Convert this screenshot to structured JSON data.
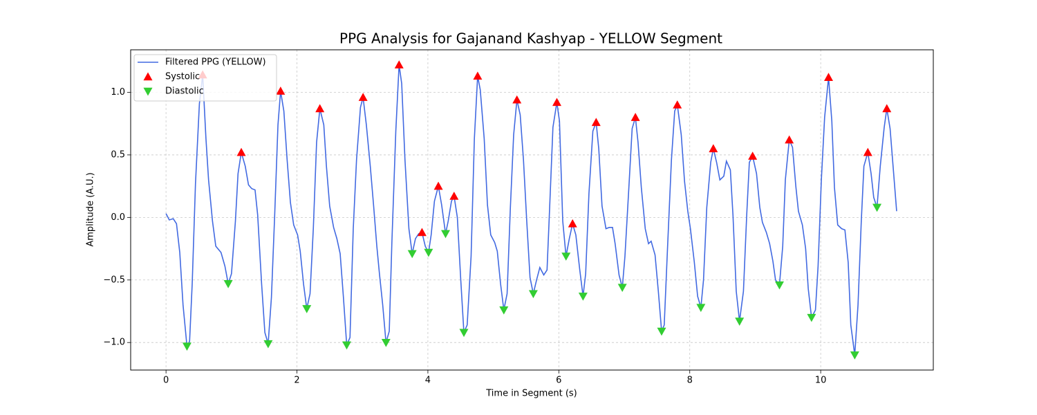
{
  "chart_data": {
    "type": "line",
    "title": "PPG Analysis for Gajanand Kashyap - YELLOW Segment",
    "x_label": "Time in Segment (s)",
    "y_label": "Amplitude (A.U.)",
    "xlim": [
      -0.54,
      11.72
    ],
    "ylim": [
      -1.22,
      1.34
    ],
    "xticks": [
      0,
      2,
      4,
      6,
      8,
      10
    ],
    "yticks": [
      {
        "value": -1,
        "label": "−1.0"
      },
      {
        "value": -0.5,
        "label": "−0.5"
      },
      {
        "value": 0,
        "label": "0.0"
      },
      0.5,
      {
        "value": 1,
        "label": "1.0"
      }
    ],
    "grid": true,
    "legend": "upper left",
    "series": [
      {
        "name": "Filtered PPG (YELLOW)",
        "color": "#4169e1",
        "mark": "line",
        "x": [
          0,
          0.05,
          0.11,
          0.16,
          0.21,
          0.26,
          0.32,
          0.36,
          0.4,
          0.45,
          0.51,
          0.56,
          0.61,
          0.65,
          0.71,
          0.76,
          0.84,
          0.9,
          0.95,
          1.0,
          1.06,
          1.1,
          1.15,
          1.21,
          1.26,
          1.31,
          1.36,
          1.4,
          1.46,
          1.51,
          1.56,
          1.61,
          1.66,
          1.71,
          1.75,
          1.8,
          1.85,
          1.9,
          1.95,
          2.01,
          2.05,
          2.1,
          2.15,
          2.2,
          2.25,
          2.3,
          2.35,
          2.41,
          2.45,
          2.5,
          2.56,
          2.61,
          2.66,
          2.71,
          2.76,
          2.81,
          2.86,
          2.91,
          2.97,
          3.01,
          3.06,
          3.12,
          3.17,
          3.22,
          3.26,
          3.31,
          3.36,
          3.41,
          3.45,
          3.51,
          3.56,
          3.6,
          3.65,
          3.71,
          3.76,
          3.81,
          3.86,
          3.91,
          3.96,
          4.01,
          4.05,
          4.1,
          4.16,
          4.21,
          4.27,
          4.31,
          4.36,
          4.4,
          4.45,
          4.5,
          4.55,
          4.6,
          4.66,
          4.71,
          4.76,
          4.8,
          4.86,
          4.91,
          4.96,
          5.02,
          5.06,
          5.11,
          5.16,
          5.21,
          5.26,
          5.31,
          5.36,
          5.41,
          5.46,
          5.51,
          5.56,
          5.61,
          5.66,
          5.71,
          5.77,
          5.82,
          5.86,
          5.91,
          5.97,
          6.01,
          6.06,
          6.11,
          6.16,
          6.21,
          6.26,
          6.32,
          6.37,
          6.41,
          6.46,
          6.52,
          6.57,
          6.61,
          6.66,
          6.72,
          6.77,
          6.82,
          6.86,
          6.92,
          6.97,
          7.01,
          7.07,
          7.12,
          7.17,
          7.21,
          7.26,
          7.32,
          7.37,
          7.41,
          7.47,
          7.52,
          7.57,
          7.61,
          7.66,
          7.72,
          7.77,
          7.81,
          7.87,
          7.92,
          7.97,
          8.01,
          8.07,
          8.12,
          8.17,
          8.21,
          8.26,
          8.32,
          8.36,
          8.41,
          8.46,
          8.52,
          8.56,
          8.62,
          8.66,
          8.71,
          8.76,
          8.82,
          8.87,
          8.91,
          8.96,
          9.02,
          9.07,
          9.11,
          9.17,
          9.22,
          9.27,
          9.31,
          9.37,
          9.42,
          9.46,
          9.52,
          9.57,
          9.62,
          9.66,
          9.72,
          9.77,
          9.81,
          9.86,
          9.92,
          9.96,
          10.01,
          10.06,
          10.12,
          10.17,
          10.21,
          10.26,
          10.32,
          10.37,
          10.42,
          10.46,
          10.52,
          10.57,
          10.62,
          10.66,
          10.72,
          10.77,
          10.81,
          10.86,
          10.91,
          10.97,
          11.01,
          11.06,
          11.11,
          11.16
        ],
        "values": [
          0.03,
          -0.02,
          -0.01,
          -0.05,
          -0.28,
          -0.7,
          -1.03,
          -0.99,
          -0.53,
          0.27,
          0.91,
          1.14,
          0.63,
          0.3,
          -0.03,
          -0.23,
          -0.28,
          -0.39,
          -0.53,
          -0.45,
          -0.03,
          0.35,
          0.52,
          0.41,
          0.26,
          0.23,
          0.22,
          0.02,
          -0.53,
          -0.92,
          -1.01,
          -0.64,
          0.02,
          0.74,
          1.01,
          0.85,
          0.46,
          0.12,
          -0.06,
          -0.14,
          -0.27,
          -0.53,
          -0.73,
          -0.61,
          -0.09,
          0.6,
          0.87,
          0.74,
          0.41,
          0.09,
          -0.08,
          -0.17,
          -0.29,
          -0.64,
          -1.02,
          -0.96,
          -0.09,
          0.46,
          0.88,
          0.96,
          0.74,
          0.41,
          0.1,
          -0.23,
          -0.45,
          -0.7,
          -1.0,
          -0.91,
          -0.2,
          0.69,
          1.22,
          1.07,
          0.46,
          -0.09,
          -0.29,
          -0.17,
          -0.13,
          -0.12,
          -0.23,
          -0.28,
          -0.14,
          0.13,
          0.25,
          0.1,
          -0.13,
          -0.03,
          0.13,
          0.17,
          0.0,
          -0.48,
          -0.92,
          -0.86,
          -0.31,
          0.63,
          1.13,
          1.02,
          0.63,
          0.1,
          -0.14,
          -0.2,
          -0.27,
          -0.53,
          -0.74,
          -0.61,
          0.08,
          0.66,
          0.94,
          0.82,
          0.46,
          -0.03,
          -0.48,
          -0.61,
          -0.5,
          -0.4,
          -0.46,
          -0.42,
          0.08,
          0.72,
          0.92,
          0.77,
          -0.03,
          -0.31,
          -0.17,
          -0.05,
          -0.14,
          -0.42,
          -0.63,
          -0.45,
          0.19,
          0.69,
          0.76,
          0.55,
          0.09,
          -0.09,
          -0.08,
          -0.08,
          -0.21,
          -0.46,
          -0.56,
          -0.31,
          0.24,
          0.71,
          0.8,
          0.6,
          0.24,
          -0.09,
          -0.21,
          -0.19,
          -0.3,
          -0.59,
          -0.91,
          -0.86,
          -0.25,
          0.46,
          0.85,
          0.9,
          0.66,
          0.29,
          0.05,
          -0.09,
          -0.36,
          -0.63,
          -0.72,
          -0.5,
          0.08,
          0.44,
          0.55,
          0.44,
          0.3,
          0.33,
          0.45,
          0.38,
          0.02,
          -0.59,
          -0.83,
          -0.59,
          0.02,
          0.44,
          0.49,
          0.35,
          0.08,
          -0.04,
          -0.12,
          -0.21,
          -0.35,
          -0.5,
          -0.54,
          -0.23,
          0.3,
          0.62,
          0.56,
          0.25,
          0.05,
          -0.06,
          -0.25,
          -0.57,
          -0.8,
          -0.74,
          -0.39,
          0.3,
          0.8,
          1.12,
          0.77,
          0.24,
          -0.06,
          -0.09,
          -0.1,
          -0.36,
          -0.86,
          -1.1,
          -0.7,
          -0.03,
          0.41,
          0.52,
          0.35,
          0.16,
          0.08,
          0.41,
          0.72,
          0.87,
          0.71,
          0.38,
          0.05
        ]
      },
      {
        "name": "Systolic",
        "color": "#ff0000",
        "mark": "triangle-up",
        "x": [
          0.56,
          1.15,
          1.75,
          2.35,
          3.01,
          3.56,
          3.91,
          4.16,
          4.4,
          4.76,
          5.36,
          5.97,
          6.21,
          6.57,
          7.17,
          7.81,
          8.36,
          8.96,
          9.52,
          10.12,
          10.72,
          11.01
        ],
        "values": [
          1.14,
          0.52,
          1.01,
          0.87,
          0.96,
          1.22,
          -0.12,
          0.25,
          0.17,
          1.13,
          0.94,
          0.92,
          -0.05,
          0.76,
          0.8,
          0.9,
          0.55,
          0.49,
          0.62,
          1.12,
          0.52,
          0.87
        ]
      },
      {
        "name": "Diastolic",
        "color": "#32cd32",
        "mark": "triangle-down",
        "x": [
          0.32,
          0.95,
          1.56,
          2.15,
          2.76,
          3.36,
          3.76,
          4.01,
          4.27,
          4.55,
          5.16,
          5.61,
          6.11,
          6.37,
          6.97,
          7.57,
          8.17,
          8.76,
          9.37,
          9.86,
          10.52,
          10.86
        ],
        "values": [
          -1.03,
          -0.53,
          -1.01,
          -0.73,
          -1.02,
          -1.0,
          -0.29,
          -0.28,
          -0.13,
          -0.92,
          -0.74,
          -0.61,
          -0.31,
          -0.63,
          -0.56,
          -0.91,
          -0.72,
          -0.83,
          -0.54,
          -0.8,
          -1.1,
          0.08
        ]
      }
    ]
  }
}
